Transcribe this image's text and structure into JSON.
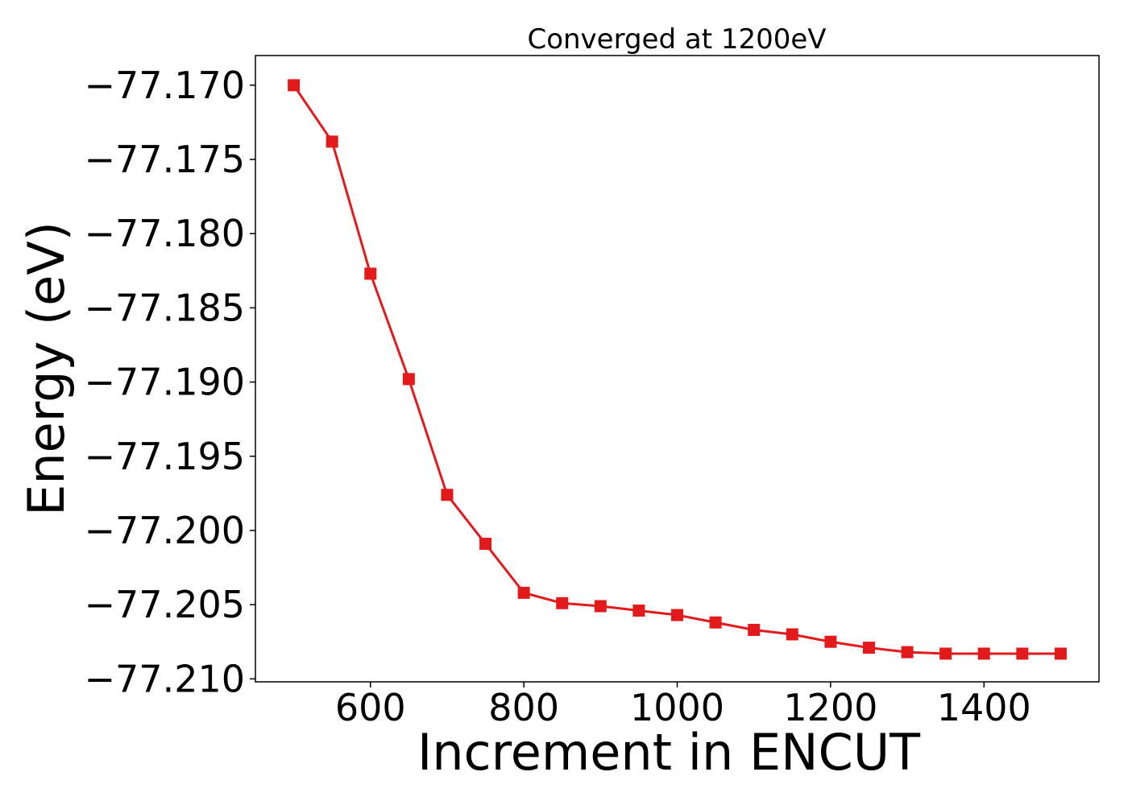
{
  "chart_data": {
    "type": "line",
    "title": "Converged at 1200eV",
    "xlabel": "Increment in ENCUT",
    "ylabel": "Energy (eV)",
    "xlim": [
      450,
      1550
    ],
    "ylim": [
      -77.2102,
      -77.168
    ],
    "xticks": [
      600,
      800,
      1000,
      1200,
      1400
    ],
    "xtick_labels": [
      "600",
      "800",
      "1000",
      "1200",
      "1400"
    ],
    "yticks": [
      -77.17,
      -77.175,
      -77.18,
      -77.185,
      -77.19,
      -77.195,
      -77.2,
      -77.205,
      -77.21
    ],
    "ytick_labels": [
      "−77.170",
      "−77.175",
      "−77.180",
      "−77.185",
      "−77.190",
      "−77.195",
      "−77.200",
      "−77.205",
      "−77.210"
    ],
    "grid": false,
    "series": [
      {
        "color": "#e31a1c",
        "marker": "square",
        "x": [
          500,
          550,
          600,
          650,
          700,
          750,
          800,
          850,
          900,
          950,
          1000,
          1050,
          1100,
          1150,
          1200,
          1250,
          1300,
          1350,
          1400,
          1450,
          1500
        ],
        "y": [
          -77.17,
          -77.1738,
          -77.1827,
          -77.1898,
          -77.1976,
          -77.2009,
          -77.2042,
          -77.2049,
          -77.2051,
          -77.2054,
          -77.2057,
          -77.2062,
          -77.2067,
          -77.207,
          -77.2075,
          -77.2079,
          -77.2082,
          -77.2083,
          -77.2083,
          -77.2083,
          -77.2083
        ]
      }
    ]
  }
}
